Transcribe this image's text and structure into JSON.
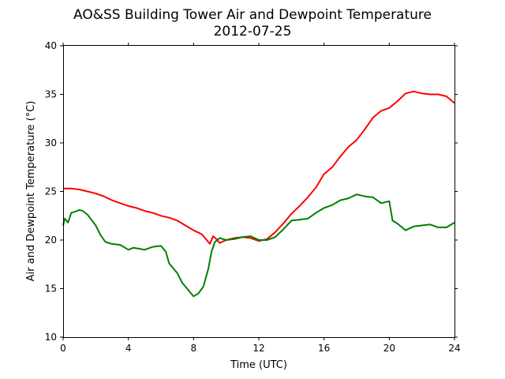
{
  "chart_data": {
    "type": "line",
    "title": "AO&SS Building Tower Air and Dewpoint Temperature",
    "subtitle": "2012-07-25",
    "xlabel": "Time (UTC)",
    "ylabel": "Air and Dewpoint Temperature (°C)",
    "xlim": [
      0,
      24
    ],
    "ylim": [
      10,
      40
    ],
    "xticks": [
      0,
      4,
      8,
      12,
      16,
      20,
      24
    ],
    "yticks": [
      10,
      15,
      20,
      25,
      30,
      35,
      40
    ],
    "grid": false,
    "series": [
      {
        "color": "#ff0000",
        "x": [
          0,
          0.5,
          1,
          1.5,
          2,
          2.5,
          3,
          3.5,
          4,
          4.5,
          5,
          5.5,
          6,
          6.5,
          7,
          7.5,
          8,
          8.5,
          9,
          9.2,
          9.4,
          9.6,
          10,
          10.5,
          11,
          11.5,
          12,
          12.5,
          13,
          13.5,
          14,
          14.5,
          15,
          15.5,
          16,
          16.5,
          17,
          17.5,
          18,
          18.5,
          19,
          19.5,
          20,
          20.5,
          21,
          21.5,
          22,
          22.5,
          23,
          23.5,
          24
        ],
        "values": [
          25.3,
          25.3,
          25.2,
          25.0,
          24.8,
          24.5,
          24.1,
          23.8,
          23.5,
          23.3,
          23.0,
          22.8,
          22.5,
          22.3,
          22.0,
          21.5,
          21.0,
          20.6,
          19.6,
          20.4,
          20.1,
          19.7,
          20.0,
          20.2,
          20.3,
          20.2,
          19.9,
          20.1,
          20.8,
          21.7,
          22.7,
          23.5,
          24.4,
          25.4,
          26.8,
          27.5,
          28.6,
          29.6,
          30.3,
          31.4,
          32.6,
          33.3,
          33.6,
          34.3,
          35.1,
          35.3,
          35.1,
          35.0,
          35.0,
          34.8,
          34.1
        ]
      },
      {
        "color": "#008000",
        "x": [
          0,
          0.1,
          0.3,
          0.5,
          0.7,
          1,
          1.2,
          1.5,
          2,
          2.3,
          2.6,
          3,
          3.5,
          4,
          4.3,
          4.7,
          5,
          5.5,
          6,
          6.3,
          6.5,
          6.8,
          7,
          7.3,
          7.6,
          8,
          8.3,
          8.6,
          8.9,
          9.1,
          9.3,
          9.6,
          10,
          10.5,
          11,
          11.5,
          12,
          12.5,
          13,
          13.5,
          14,
          14.5,
          15,
          15.5,
          16,
          16.5,
          17,
          17.5,
          18,
          18.5,
          19,
          19.5,
          20,
          20.2,
          20.5,
          21,
          21.5,
          22,
          22.5,
          23,
          23.5,
          24
        ],
        "values": [
          21.5,
          22.2,
          21.8,
          22.8,
          22.9,
          23.1,
          23.0,
          22.6,
          21.5,
          20.5,
          19.8,
          19.6,
          19.5,
          19.0,
          19.2,
          19.1,
          19.0,
          19.3,
          19.4,
          18.8,
          17.6,
          17.0,
          16.6,
          15.6,
          15.0,
          14.2,
          14.5,
          15.2,
          17.0,
          18.8,
          19.8,
          20.2,
          20.0,
          20.1,
          20.3,
          20.4,
          20.0,
          20.0,
          20.3,
          21.1,
          22.0,
          22.1,
          22.2,
          22.8,
          23.3,
          23.6,
          24.1,
          24.3,
          24.7,
          24.5,
          24.4,
          23.8,
          24.0,
          22.0,
          21.7,
          21.0,
          21.4,
          21.5,
          21.6,
          21.3,
          21.3,
          21.8
        ]
      }
    ]
  }
}
